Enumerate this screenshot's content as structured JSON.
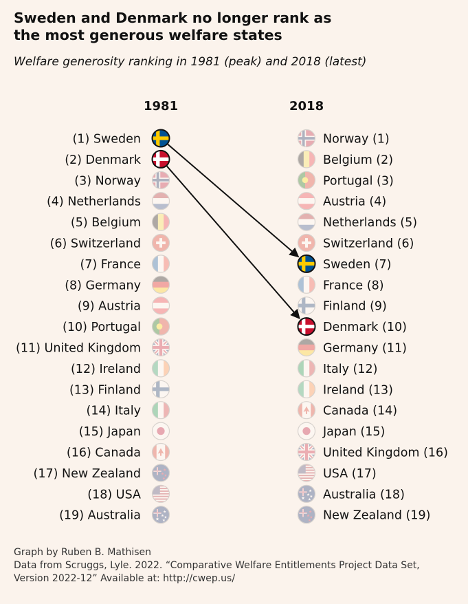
{
  "title": "Sweden and Denmark no longer rank as\nthe most generous welfare states",
  "subtitle": "Welfare generosity ranking in 1981 (peak) and 2018 (latest)",
  "chart_data": {
    "type": "slope",
    "title": "Sweden and Denmark no longer rank as the most generous welfare states",
    "subtitle": "Welfare generosity ranking in 1981 (peak) and 2018 (latest)",
    "columns": [
      "1981",
      "2018"
    ],
    "highlighted": [
      "Sweden",
      "Denmark"
    ],
    "ranking_1981": [
      {
        "rank": 1,
        "country": "Sweden",
        "label": "(1) Sweden",
        "flag": "sweden-flag"
      },
      {
        "rank": 2,
        "country": "Denmark",
        "label": "(2) Denmark",
        "flag": "denmark-flag"
      },
      {
        "rank": 3,
        "country": "Norway",
        "label": "(3) Norway",
        "flag": "norway-flag"
      },
      {
        "rank": 4,
        "country": "Netherlands",
        "label": "(4) Netherlands",
        "flag": "netherlands-flag"
      },
      {
        "rank": 5,
        "country": "Belgium",
        "label": "(5) Belgium",
        "flag": "belgium-flag"
      },
      {
        "rank": 6,
        "country": "Switzerland",
        "label": "(6) Switzerland",
        "flag": "switzerland-flag"
      },
      {
        "rank": 7,
        "country": "France",
        "label": "(7) France",
        "flag": "france-flag"
      },
      {
        "rank": 8,
        "country": "Germany",
        "label": "(8) Germany",
        "flag": "germany-flag"
      },
      {
        "rank": 9,
        "country": "Austria",
        "label": "(9) Austria",
        "flag": "austria-flag"
      },
      {
        "rank": 10,
        "country": "Portugal",
        "label": "(10) Portugal",
        "flag": "portugal-flag"
      },
      {
        "rank": 11,
        "country": "United Kingdom",
        "label": "(11) United Kingdom",
        "flag": "uk-flag"
      },
      {
        "rank": 12,
        "country": "Ireland",
        "label": "(12) Ireland",
        "flag": "ireland-flag"
      },
      {
        "rank": 13,
        "country": "Finland",
        "label": "(13) Finland",
        "flag": "finland-flag"
      },
      {
        "rank": 14,
        "country": "Italy",
        "label": "(14) Italy",
        "flag": "italy-flag"
      },
      {
        "rank": 15,
        "country": "Japan",
        "label": "(15) Japan",
        "flag": "japan-flag"
      },
      {
        "rank": 16,
        "country": "Canada",
        "label": "(16) Canada",
        "flag": "canada-flag"
      },
      {
        "rank": 17,
        "country": "New Zealand",
        "label": "(17) New Zealand",
        "flag": "new-zealand-flag"
      },
      {
        "rank": 18,
        "country": "USA",
        "label": "(18) USA",
        "flag": "usa-flag"
      },
      {
        "rank": 19,
        "country": "Australia",
        "label": "(19) Australia",
        "flag": "australia-flag"
      }
    ],
    "ranking_2018": [
      {
        "rank": 1,
        "country": "Norway",
        "label": "Norway (1)",
        "flag": "norway-flag"
      },
      {
        "rank": 2,
        "country": "Belgium",
        "label": "Belgium (2)",
        "flag": "belgium-flag"
      },
      {
        "rank": 3,
        "country": "Portugal",
        "label": "Portugal (3)",
        "flag": "portugal-flag"
      },
      {
        "rank": 4,
        "country": "Austria",
        "label": "Austria (4)",
        "flag": "austria-flag"
      },
      {
        "rank": 5,
        "country": "Netherlands",
        "label": "Netherlands (5)",
        "flag": "netherlands-flag"
      },
      {
        "rank": 6,
        "country": "Switzerland",
        "label": "Switzerland (6)",
        "flag": "switzerland-flag"
      },
      {
        "rank": 7,
        "country": "Sweden",
        "label": "Sweden (7)",
        "flag": "sweden-flag"
      },
      {
        "rank": 8,
        "country": "France",
        "label": "France (8)",
        "flag": "france-flag"
      },
      {
        "rank": 9,
        "country": "Finland",
        "label": "Finland (9)",
        "flag": "finland-flag"
      },
      {
        "rank": 10,
        "country": "Denmark",
        "label": "Denmark (10)",
        "flag": "denmark-flag"
      },
      {
        "rank": 11,
        "country": "Germany",
        "label": "Germany (11)",
        "flag": "germany-flag"
      },
      {
        "rank": 12,
        "country": "Italy",
        "label": "Italy (12)",
        "flag": "italy-flag"
      },
      {
        "rank": 13,
        "country": "Ireland",
        "label": "Ireland (13)",
        "flag": "ireland-flag"
      },
      {
        "rank": 14,
        "country": "Canada",
        "label": "Canada (14)",
        "flag": "canada-flag"
      },
      {
        "rank": 15,
        "country": "Japan",
        "label": "Japan (15)",
        "flag": "japan-flag"
      },
      {
        "rank": 16,
        "country": "United Kingdom",
        "label": "United Kingdom (16)",
        "flag": "uk-flag"
      },
      {
        "rank": 17,
        "country": "USA",
        "label": "USA (17)",
        "flag": "usa-flag"
      },
      {
        "rank": 18,
        "country": "Australia",
        "label": "Australia (18)",
        "flag": "australia-flag"
      },
      {
        "rank": 19,
        "country": "New Zealand",
        "label": "New Zealand (19)",
        "flag": "new-zealand-flag"
      }
    ]
  },
  "footer": {
    "credit": "Graph by Ruben B. Mathisen",
    "source_line1": "Data from Scruggs, Lyle. 2022. “Comparative Welfare Entitlements Project Data Set,",
    "source_line2": "Version 2022-12” Available at: http://cwep.us/"
  }
}
